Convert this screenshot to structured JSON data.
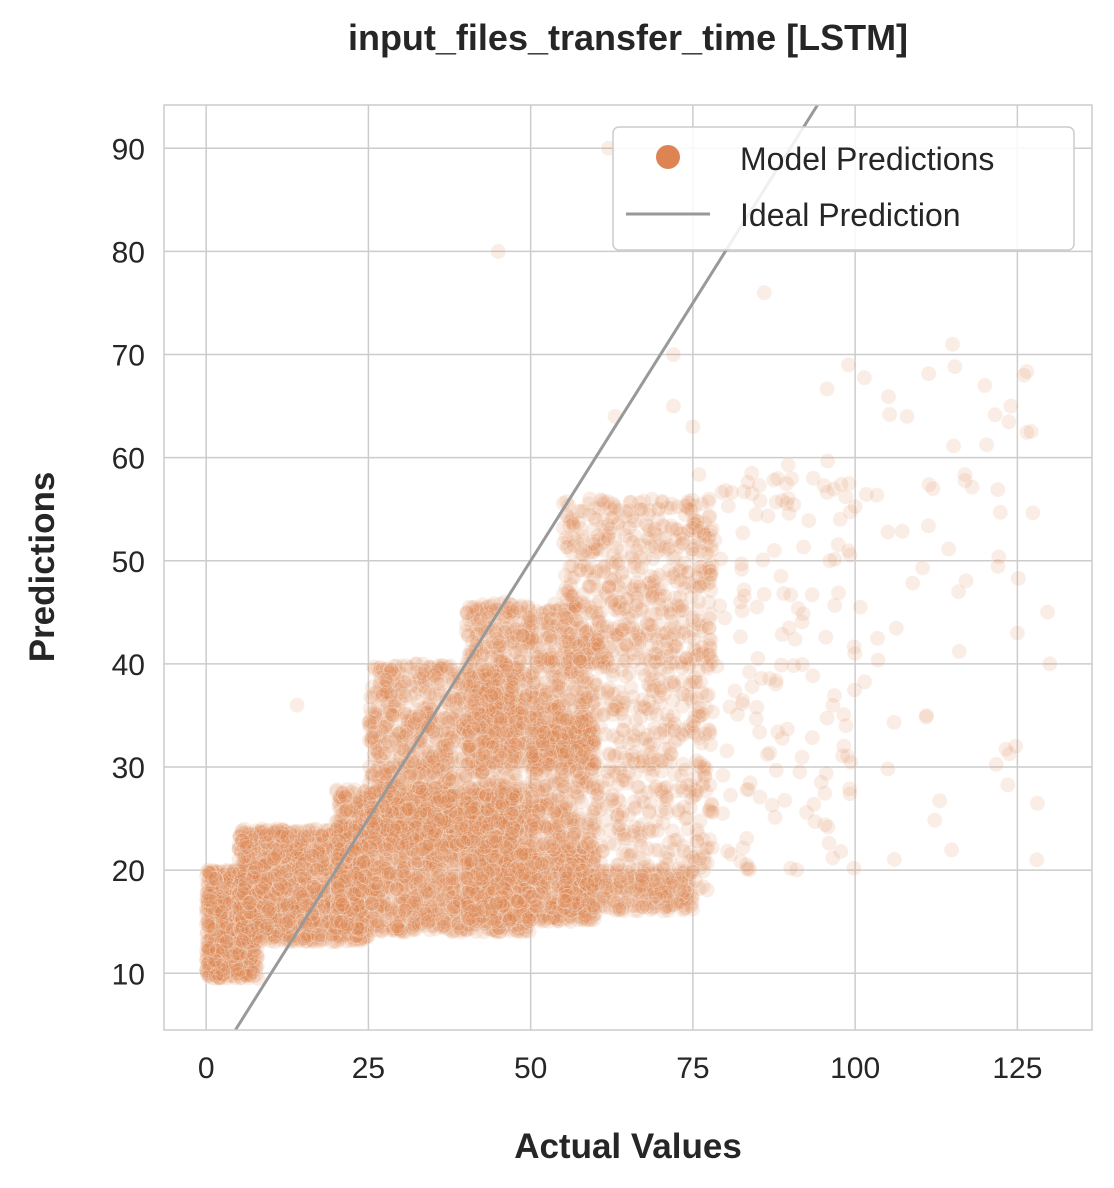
{
  "colors": {
    "points": "#dd8452",
    "ideal_line": "#999999",
    "grid": "#cccccc",
    "frame": "#cccccc",
    "text": "#262626"
  },
  "chart_data": {
    "type": "scatter",
    "title": "input_files_transfer_time [LSTM]",
    "xlabel": "Actual Values",
    "ylabel": "Predictions",
    "xlim": [
      -6.5,
      136.5
    ],
    "ylim": [
      4.5,
      94.2
    ],
    "xticks": [
      0,
      25,
      50,
      75,
      100,
      125
    ],
    "yticks": [
      10,
      20,
      30,
      40,
      50,
      60,
      70,
      80,
      90
    ],
    "grid": true,
    "legend_position": "top-right",
    "legend": [
      {
        "label": "Model Predictions",
        "marker": "circle"
      },
      {
        "label": "Ideal Prediction",
        "marker": "line"
      }
    ],
    "series": [
      {
        "name": "Model Predictions",
        "kind": "scatter",
        "alpha": 0.15,
        "clusters": [
          {
            "x": [
              0,
              8
            ],
            "y": [
              9.5,
              20
            ],
            "n": 900
          },
          {
            "x": [
              5,
              25
            ],
            "y": [
              13,
              24
            ],
            "n": 1400
          },
          {
            "x": [
              20,
              50
            ],
            "y": [
              14,
              28
            ],
            "n": 1800
          },
          {
            "x": [
              40,
              60
            ],
            "y": [
              15,
              22
            ],
            "n": 700
          },
          {
            "x": [
              55,
              75
            ],
            "y": [
              16,
              20
            ],
            "n": 300
          },
          {
            "x": [
              25,
              48
            ],
            "y": [
              22,
              40
            ],
            "n": 1200
          },
          {
            "x": [
              40,
              60
            ],
            "y": [
              30,
              46
            ],
            "n": 900
          },
          {
            "x": [
              55,
              78
            ],
            "y": [
              40,
              56
            ],
            "n": 500
          },
          {
            "x": [
              50,
              60
            ],
            "y": [
              22,
              35
            ],
            "n": 400
          },
          {
            "x": [
              60,
              78
            ],
            "y": [
              18,
              44
            ],
            "n": 450
          },
          {
            "x": [
              75,
              100
            ],
            "y": [
              20,
              60
            ],
            "n": 160
          },
          {
            "x": [
              95,
              130
            ],
            "y": [
              19,
              70
            ],
            "n": 60
          }
        ],
        "outliers": [
          [
            45,
            80
          ],
          [
            62,
            90
          ],
          [
            72,
            70
          ],
          [
            86,
            76
          ],
          [
            115,
            71
          ],
          [
            126,
            68
          ],
          [
            120,
            67
          ],
          [
            124,
            65
          ],
          [
            99,
            69
          ],
          [
            112,
            57
          ],
          [
            108,
            64
          ],
          [
            130,
            40
          ],
          [
            111,
            35
          ],
          [
            128,
            21
          ],
          [
            125,
            43
          ],
          [
            14,
            36
          ],
          [
            75,
            63
          ],
          [
            72,
            65
          ],
          [
            63,
            64
          ],
          [
            67,
            55
          ]
        ]
      },
      {
        "name": "Ideal Prediction",
        "kind": "line",
        "x": [
          4.5,
          94.2
        ],
        "y": [
          4.5,
          94.2
        ]
      }
    ]
  }
}
